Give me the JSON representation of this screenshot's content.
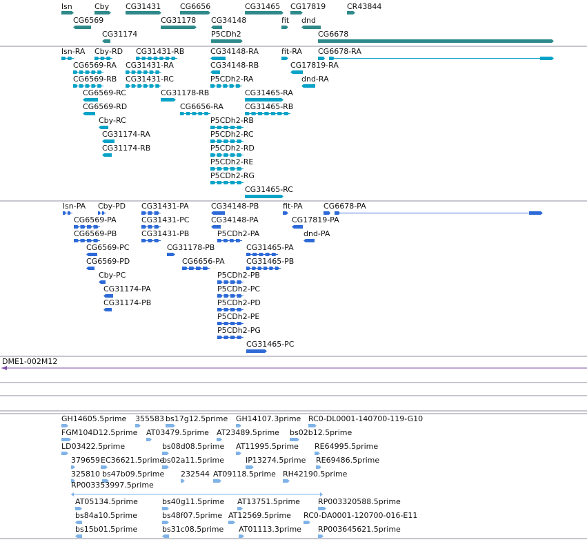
{
  "colors": {
    "gene": "#2e8a8a",
    "transcript": "#0aa3c8",
    "protein": "#2d6ad8",
    "clone": "#7b4fa8",
    "est": "#7fb3e8",
    "separator": "#8e8ea2",
    "text": "#111111"
  },
  "tracks": {
    "genes": {
      "features": [
        {
          "label": "lsn"
        },
        {
          "label": "Cby"
        },
        {
          "label": "CG31431"
        },
        {
          "label": "CG6656"
        },
        {
          "label": "CG31465"
        },
        {
          "label": "CG17819"
        },
        {
          "label": "CR43844"
        },
        {
          "label": "CG6569"
        },
        {
          "label": "CG31178"
        },
        {
          "label": "CG34148"
        },
        {
          "label": "fit"
        },
        {
          "label": "dnd"
        },
        {
          "label": "CG31174"
        },
        {
          "label": "P5CDh2"
        },
        {
          "label": "CG6678"
        }
      ]
    },
    "transcripts": {
      "features": [
        {
          "label": "lsn-RA"
        },
        {
          "label": "Cby-RD"
        },
        {
          "label": "CG31431-RB"
        },
        {
          "label": "CG34148-RA"
        },
        {
          "label": "fit-RA"
        },
        {
          "label": "CG6678-RA"
        },
        {
          "label": "CG6569-RA"
        },
        {
          "label": "CG31431-RA"
        },
        {
          "label": "CG34148-RB"
        },
        {
          "label": "CG17819-RA"
        },
        {
          "label": "CG6569-RB"
        },
        {
          "label": "CG31431-RC"
        },
        {
          "label": "P5CDh2-RA"
        },
        {
          "label": "dnd-RA"
        },
        {
          "label": "CG6569-RC"
        },
        {
          "label": "CG31178-RB"
        },
        {
          "label": "CG31465-RA"
        },
        {
          "label": "CG6569-RD"
        },
        {
          "label": "CG6656-RA"
        },
        {
          "label": "CG31465-RB"
        },
        {
          "label": "Cby-RC"
        },
        {
          "label": "P5CDh2-RB"
        },
        {
          "label": "CG31174-RA"
        },
        {
          "label": "P5CDh2-RC"
        },
        {
          "label": "CG31174-RB"
        },
        {
          "label": "P5CDh2-RD"
        },
        {
          "label": "P5CDh2-RE"
        },
        {
          "label": "P5CDh2-RG"
        },
        {
          "label": "CG31465-RC"
        }
      ]
    },
    "proteins": {
      "features": [
        {
          "label": "lsn-PA"
        },
        {
          "label": "Cby-PD"
        },
        {
          "label": "CG31431-PA"
        },
        {
          "label": "CG34148-PB"
        },
        {
          "label": "fit-PA"
        },
        {
          "label": "CG6678-PA"
        },
        {
          "label": "CG6569-PA"
        },
        {
          "label": "CG31431-PC"
        },
        {
          "label": "CG34148-PA"
        },
        {
          "label": "CG17819-PA"
        },
        {
          "label": "CG6569-PB"
        },
        {
          "label": "CG31431-PB"
        },
        {
          "label": "P5CDh2-PA"
        },
        {
          "label": "dnd-PA"
        },
        {
          "label": "CG6569-PC"
        },
        {
          "label": "CG31178-PB"
        },
        {
          "label": "CG31465-PA"
        },
        {
          "label": "CG6569-PD"
        },
        {
          "label": "CG6656-PA"
        },
        {
          "label": "CG31465-PB"
        },
        {
          "label": "Cby-PC"
        },
        {
          "label": "P5CDh2-PB"
        },
        {
          "label": "CG31174-PA"
        },
        {
          "label": "P5CDh2-PC"
        },
        {
          "label": "CG31174-PB"
        },
        {
          "label": "P5CDh2-PD"
        },
        {
          "label": "P5CDh2-PE"
        },
        {
          "label": "P5CDh2-PG"
        },
        {
          "label": "CG31465-PC"
        }
      ]
    },
    "clones": {
      "features": [
        {
          "label": "DME1-002M12"
        }
      ]
    },
    "ests": {
      "features": [
        {
          "label": "GH14605.5prime"
        },
        {
          "label": "355583"
        },
        {
          "label": "bs17g12.5prime"
        },
        {
          "label": "GH14107.3prime"
        },
        {
          "label": "RC0-DL0001-140700-119-G10"
        },
        {
          "label": "FGM104D12.5prime"
        },
        {
          "label": "AT03479.5prime"
        },
        {
          "label": "AT23489.5prime"
        },
        {
          "label": "bs02b12.5prime"
        },
        {
          "label": "LD03422.5prime"
        },
        {
          "label": "bs08d08.5prime"
        },
        {
          "label": "AT11995.5prime"
        },
        {
          "label": "RE64995.5prime"
        },
        {
          "label": "379659"
        },
        {
          "label": "EC36621.5prime"
        },
        {
          "label": "bs02a11.5prime"
        },
        {
          "label": "IP13274.5prime"
        },
        {
          "label": "RE69486.5prime"
        },
        {
          "label": "325810"
        },
        {
          "label": "bs47b09.5prime"
        },
        {
          "label": "232544"
        },
        {
          "label": "AT09118.5prime"
        },
        {
          "label": "RH42190.5prime"
        },
        {
          "label": "RP003353997.5prime"
        },
        {
          "label": "AT05134.5prime"
        },
        {
          "label": "bs40g11.5prime"
        },
        {
          "label": "AT13751.5prime"
        },
        {
          "label": "RP003320588.5prime"
        },
        {
          "label": "bs84a10.5prime"
        },
        {
          "label": "bs48f07.5prime"
        },
        {
          "label": "AT12569.5prime"
        },
        {
          "label": "RC0-DA0001-120700-016-E11"
        },
        {
          "label": "bs15b01.5prime"
        },
        {
          "label": "bs31c08.5prime"
        },
        {
          "label": "AT01113.3prime"
        },
        {
          "label": "RP003645621.5prime"
        }
      ]
    }
  }
}
